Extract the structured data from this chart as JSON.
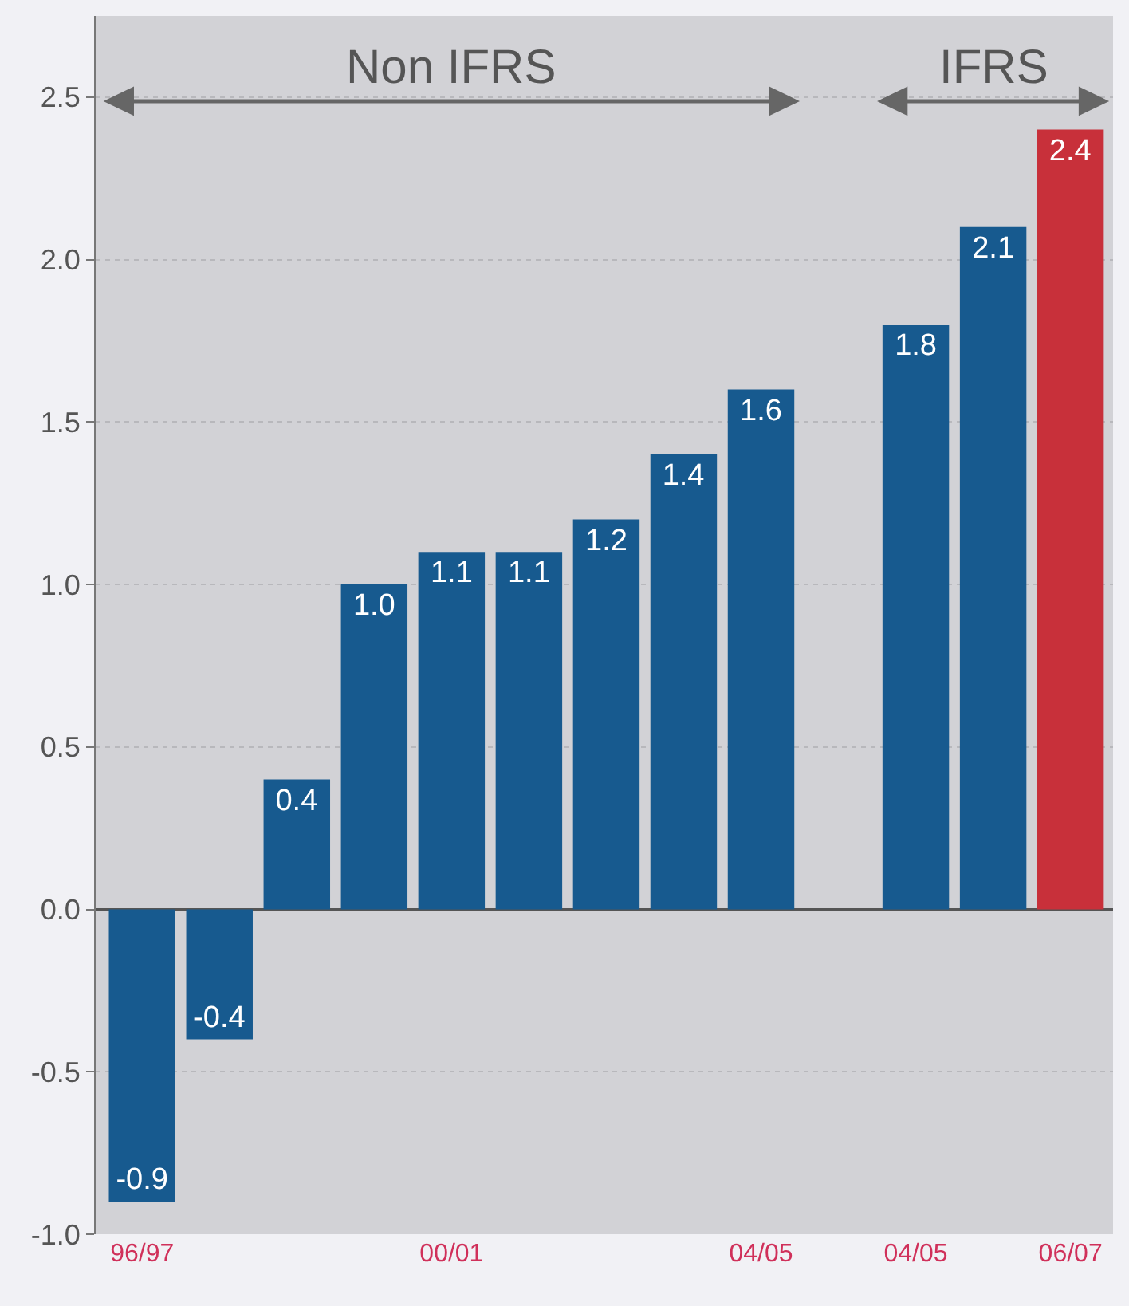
{
  "chart_data": {
    "type": "bar",
    "categories": [
      "96/97",
      null,
      null,
      null,
      "00/01",
      null,
      null,
      null,
      "04/05",
      null,
      "04/05",
      null,
      "06/07"
    ],
    "values": [
      -0.9,
      -0.4,
      0.4,
      1.0,
      1.1,
      1.1,
      1.2,
      1.4,
      1.6,
      null,
      1.8,
      2.1,
      2.4
    ],
    "colors": [
      "#175a8f",
      "#175a8f",
      "#175a8f",
      "#175a8f",
      "#175a8f",
      "#175a8f",
      "#175a8f",
      "#175a8f",
      "#175a8f",
      "#175a8f",
      "#175a8f",
      "#175a8f",
      "#c8303a"
    ],
    "value_labels": [
      "-0.9",
      "-0.4",
      "0.4",
      "1.0",
      "1.1",
      "1.1",
      "1.2",
      "1.4",
      "1.6",
      null,
      "1.8",
      "2.1",
      "2.4"
    ],
    "ylim": [
      -1.0,
      2.75
    ],
    "yticks": [
      {
        "value": -1.0,
        "label": "-1.0"
      },
      {
        "value": -0.5,
        "label": "-0.5"
      },
      {
        "value": 0,
        "label": "0.0"
      },
      {
        "value": 0.5,
        "label": "0.5"
      },
      {
        "value": 1.0,
        "label": "1.0"
      },
      {
        "value": 1.5,
        "label": "1.5"
      },
      {
        "value": 2.0,
        "label": "2.0"
      },
      {
        "value": 2.5,
        "label": "2.5"
      }
    ],
    "grid": "y",
    "annotations": [
      "Non IFRS",
      "IFRS"
    ]
  }
}
